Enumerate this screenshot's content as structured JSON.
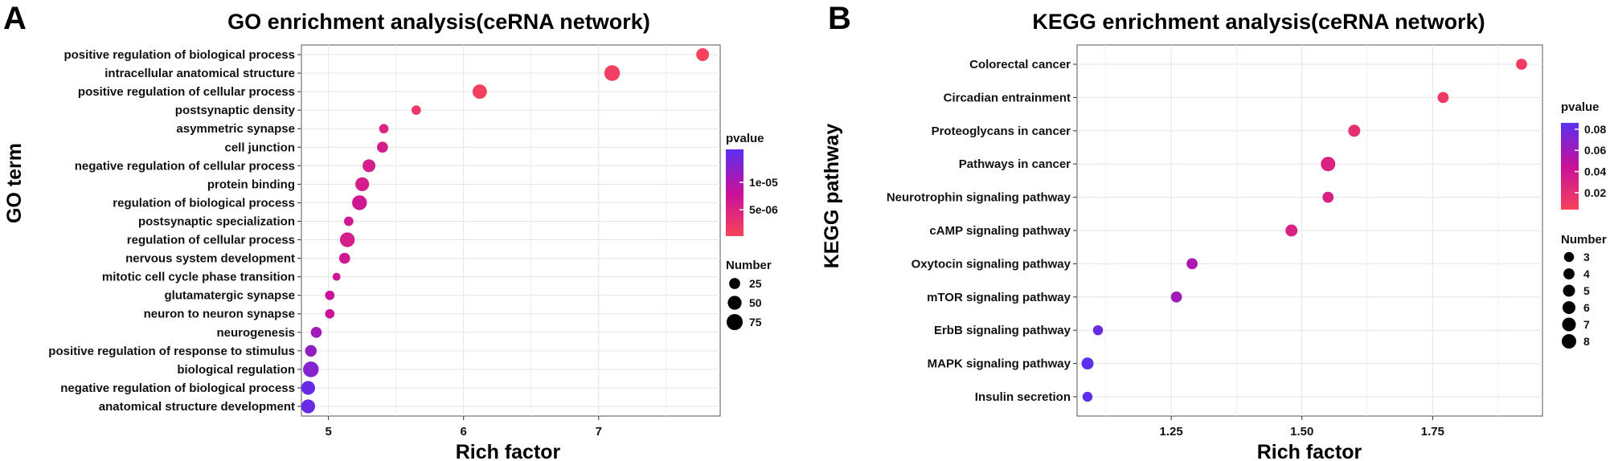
{
  "chart_data": [
    {
      "type": "scatter",
      "panel_letter": "A",
      "title": "GO enrichment analysis(ceRNA network)",
      "xlabel": "Rich factor",
      "ylabel": "GO term",
      "xlim": [
        4.8,
        7.9
      ],
      "x_ticks": [
        "5",
        "6",
        "7"
      ],
      "grid": true,
      "categories": [
        "positive regulation of biological process",
        "intracellular anatomical structure",
        "positive regulation of cellular process",
        "postsynaptic density",
        "asymmetric synapse",
        "cell junction",
        "negative regulation of cellular process",
        "protein binding",
        "regulation of biological process",
        "postsynaptic specialization",
        "regulation of cellular process",
        "nervous system development",
        "mitotic cell cycle phase transition",
        "glutamatergic synapse",
        "neuron to neuron synapse",
        "neurogenesis",
        "positive regulation of response to stimulus",
        "biological regulation",
        "negative regulation of biological process",
        "anatomical structure development"
      ],
      "rich_factor": [
        7.77,
        7.1,
        6.12,
        5.65,
        5.41,
        5.4,
        5.3,
        5.25,
        5.23,
        5.15,
        5.14,
        5.12,
        5.06,
        5.01,
        5.01,
        4.91,
        4.87,
        4.87,
        4.85,
        4.85
      ],
      "number": [
        40,
        70,
        55,
        15,
        15,
        25,
        40,
        50,
        60,
        15,
        60,
        25,
        8,
        15,
        15,
        25,
        30,
        70,
        50,
        50
      ],
      "pvalue": [
        5e-07,
        8e-07,
        1e-06,
        2e-06,
        5e-06,
        6e-06,
        6e-06,
        6e-06,
        7e-06,
        7e-06,
        6e-06,
        7e-06,
        7e-06,
        8e-06,
        8e-06,
        1.1e-05,
        1.2e-05,
        1.3e-05,
        1.5e-05,
        1.5e-05
      ],
      "legend": {
        "color_title": "pvalue",
        "color_range": [
          2e-07,
          1.6e-05
        ],
        "color_ticks": [
          {
            "label": "1e-05",
            "value": 1e-05
          },
          {
            "label": "5e-06",
            "value": 5e-06
          }
        ],
        "size_title": "Number",
        "size_items": [
          {
            "label": "25",
            "value": 25
          },
          {
            "label": "50",
            "value": 50
          },
          {
            "label": "75",
            "value": 75
          }
        ]
      }
    },
    {
      "type": "scatter",
      "panel_letter": "B",
      "title": "KEGG enrichment analysis(ceRNA network)",
      "xlabel": "Rich factor",
      "ylabel": "KEGG pathway",
      "xlim": [
        1.07,
        1.96
      ],
      "x_ticks": [
        "1.25",
        "1.50",
        "1.75"
      ],
      "grid": true,
      "categories": [
        "Colorectal cancer",
        "Circadian entrainment",
        "Proteoglycans in cancer",
        "Pathways in cancer",
        "Neurotrophin signaling pathway",
        "cAMP signaling pathway",
        "Oxytocin signaling pathway",
        "mTOR signaling pathway",
        "ErbB signaling pathway",
        "MAPK signaling pathway",
        "Insulin secretion"
      ],
      "rich_factor": [
        1.92,
        1.77,
        1.6,
        1.55,
        1.55,
        1.48,
        1.29,
        1.26,
        1.11,
        1.09,
        1.09
      ],
      "number": [
        4,
        4,
        5,
        8,
        4,
        5,
        4,
        4,
        3,
        5,
        3
      ],
      "pvalue": [
        0.01,
        0.012,
        0.02,
        0.03,
        0.032,
        0.03,
        0.055,
        0.06,
        0.08,
        0.085,
        0.085
      ],
      "legend": {
        "color_title": "pvalue",
        "color_range": [
          0.004,
          0.086
        ],
        "color_ticks": [
          {
            "label": "0.08",
            "value": 0.08
          },
          {
            "label": "0.06",
            "value": 0.06
          },
          {
            "label": "0.04",
            "value": 0.04
          },
          {
            "label": "0.02",
            "value": 0.02
          }
        ],
        "size_title": "Number",
        "size_items": [
          {
            "label": "3",
            "value": 3
          },
          {
            "label": "4",
            "value": 4
          },
          {
            "label": "5",
            "value": 5
          },
          {
            "label": "6",
            "value": 6
          },
          {
            "label": "7",
            "value": 7
          },
          {
            "label": "8",
            "value": 8
          }
        ]
      }
    }
  ]
}
